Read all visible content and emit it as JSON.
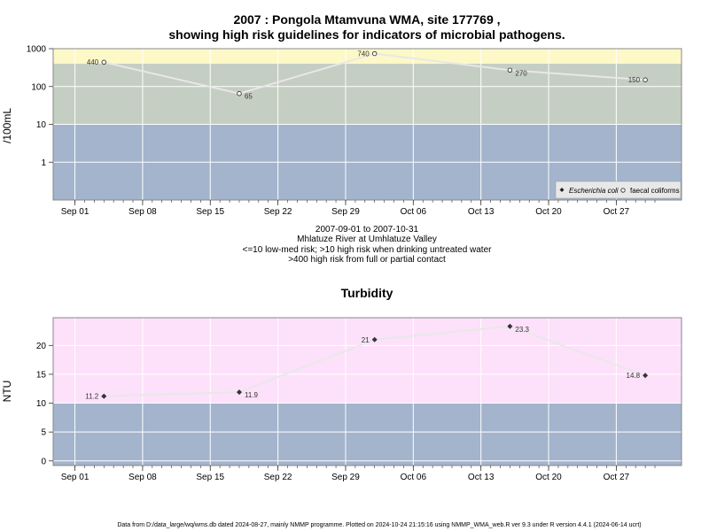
{
  "chart_data": [
    {
      "type": "line",
      "title": "2007 : Pongola Mtamvuna WMA, site 177769 ,",
      "subtitle": "showing high risk guidelines for indicators of microbial pathogens.",
      "ylabel": "/100mL",
      "yscale": "log",
      "ylim": [
        0.1,
        1000
      ],
      "y_ticks": [
        "1",
        "10",
        "100",
        "1000"
      ],
      "x_ticks": [
        "Sep 01",
        "Sep 08",
        "Sep 15",
        "Sep 22",
        "Sep 29",
        "Oct 06",
        "Oct 13",
        "Oct 20",
        "Oct 27"
      ],
      "bands": [
        {
          "from": 0.1,
          "to": 10,
          "color": "#a3b4cc"
        },
        {
          "from": 10,
          "to": 400,
          "color": "#c5cec2"
        },
        {
          "from": 400,
          "to": 1000,
          "color": "#fdf8c8"
        }
      ],
      "series": [
        {
          "name": "faecal coliforms",
          "marker": "open-circle",
          "x": [
            "2007-09-04",
            "2007-09-18",
            "2007-10-02",
            "2007-10-16",
            "2007-10-30"
          ],
          "values": [
            440,
            65,
            740,
            270,
            150
          ],
          "labels": [
            "440",
            "65",
            "740",
            "270",
            "150"
          ]
        }
      ],
      "legend": {
        "position": "bottom-right",
        "entries": [
          "Escherichia coli",
          "faecal coliforms"
        ]
      },
      "caption": [
        "2007-09-01 to 2007-10-31",
        "Mhlatuze River at Umhlatuze Valley",
        "<=10 low-med risk; >10 high risk when drinking untreated water",
        ">400 high risk from full or partial contact"
      ]
    },
    {
      "type": "line",
      "title": "Turbidity",
      "ylabel": "NTU",
      "ylim": [
        -0.8,
        24.8
      ],
      "y_ticks": [
        "0",
        "5",
        "10",
        "15",
        "20"
      ],
      "x_ticks": [
        "Sep 01",
        "Sep 08",
        "Sep 15",
        "Sep 22",
        "Sep 29",
        "Oct 06",
        "Oct 13",
        "Oct 20",
        "Oct 27"
      ],
      "bands": [
        {
          "from": -0.8,
          "to": 10,
          "color": "#a3b4cc"
        },
        {
          "from": 10,
          "to": 24.8,
          "color": "#fde0fa"
        }
      ],
      "series": [
        {
          "name": "Turbidity",
          "marker": "filled-diamond",
          "x": [
            "2007-09-04",
            "2007-09-18",
            "2007-10-02",
            "2007-10-16",
            "2007-10-30"
          ],
          "values": [
            11.2,
            11.9,
            21,
            23.3,
            14.8
          ],
          "labels": [
            "11.2",
            "11.9",
            "21",
            "23.3",
            "14.8"
          ]
        }
      ]
    }
  ],
  "footer": "Data from D:/data_large/wq/wms.db dated 2024-08-27, mainly NMMP programme. Plotted on 2024-10-24 21:15:16 using NMMP_WMA_web.R ver 9.3 under R version 4.4.1 (2024-06-14 ucrt)"
}
